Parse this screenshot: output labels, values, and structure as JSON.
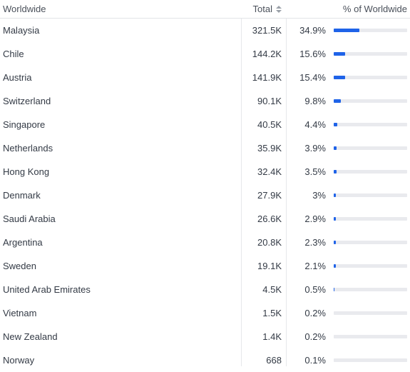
{
  "header": {
    "region_label": "Worldwide",
    "total_label": "Total",
    "share_label": "% of Worldwide"
  },
  "rows": [
    {
      "country": "Malaysia",
      "total": "321.5K",
      "share": "34.9%",
      "share_value": 34.9
    },
    {
      "country": "Chile",
      "total": "144.2K",
      "share": "15.6%",
      "share_value": 15.6
    },
    {
      "country": "Austria",
      "total": "141.9K",
      "share": "15.4%",
      "share_value": 15.4
    },
    {
      "country": "Switzerland",
      "total": "90.1K",
      "share": "9.8%",
      "share_value": 9.8
    },
    {
      "country": "Singapore",
      "total": "40.5K",
      "share": "4.4%",
      "share_value": 4.4
    },
    {
      "country": "Netherlands",
      "total": "35.9K",
      "share": "3.9%",
      "share_value": 3.9
    },
    {
      "country": "Hong Kong",
      "total": "32.4K",
      "share": "3.5%",
      "share_value": 3.5
    },
    {
      "country": "Denmark",
      "total": "27.9K",
      "share": "3%",
      "share_value": 3.0
    },
    {
      "country": "Saudi Arabia",
      "total": "26.6K",
      "share": "2.9%",
      "share_value": 2.9
    },
    {
      "country": "Argentina",
      "total": "20.8K",
      "share": "2.3%",
      "share_value": 2.3
    },
    {
      "country": "Sweden",
      "total": "19.1K",
      "share": "2.1%",
      "share_value": 2.1
    },
    {
      "country": "United Arab Emirates",
      "total": "4.5K",
      "share": "0.5%",
      "share_value": 0.5
    },
    {
      "country": "Vietnam",
      "total": "1.5K",
      "share": "0.2%",
      "share_value": 0.2
    },
    {
      "country": "New Zealand",
      "total": "1.4K",
      "share": "0.2%",
      "share_value": 0.2
    },
    {
      "country": "Norway",
      "total": "668",
      "share": "0.1%",
      "share_value": 0.1
    }
  ],
  "colors": {
    "bar_fill": "#1f63e8",
    "bar_track": "#e9eaee"
  },
  "icons": {
    "sort": "sort-icon"
  }
}
